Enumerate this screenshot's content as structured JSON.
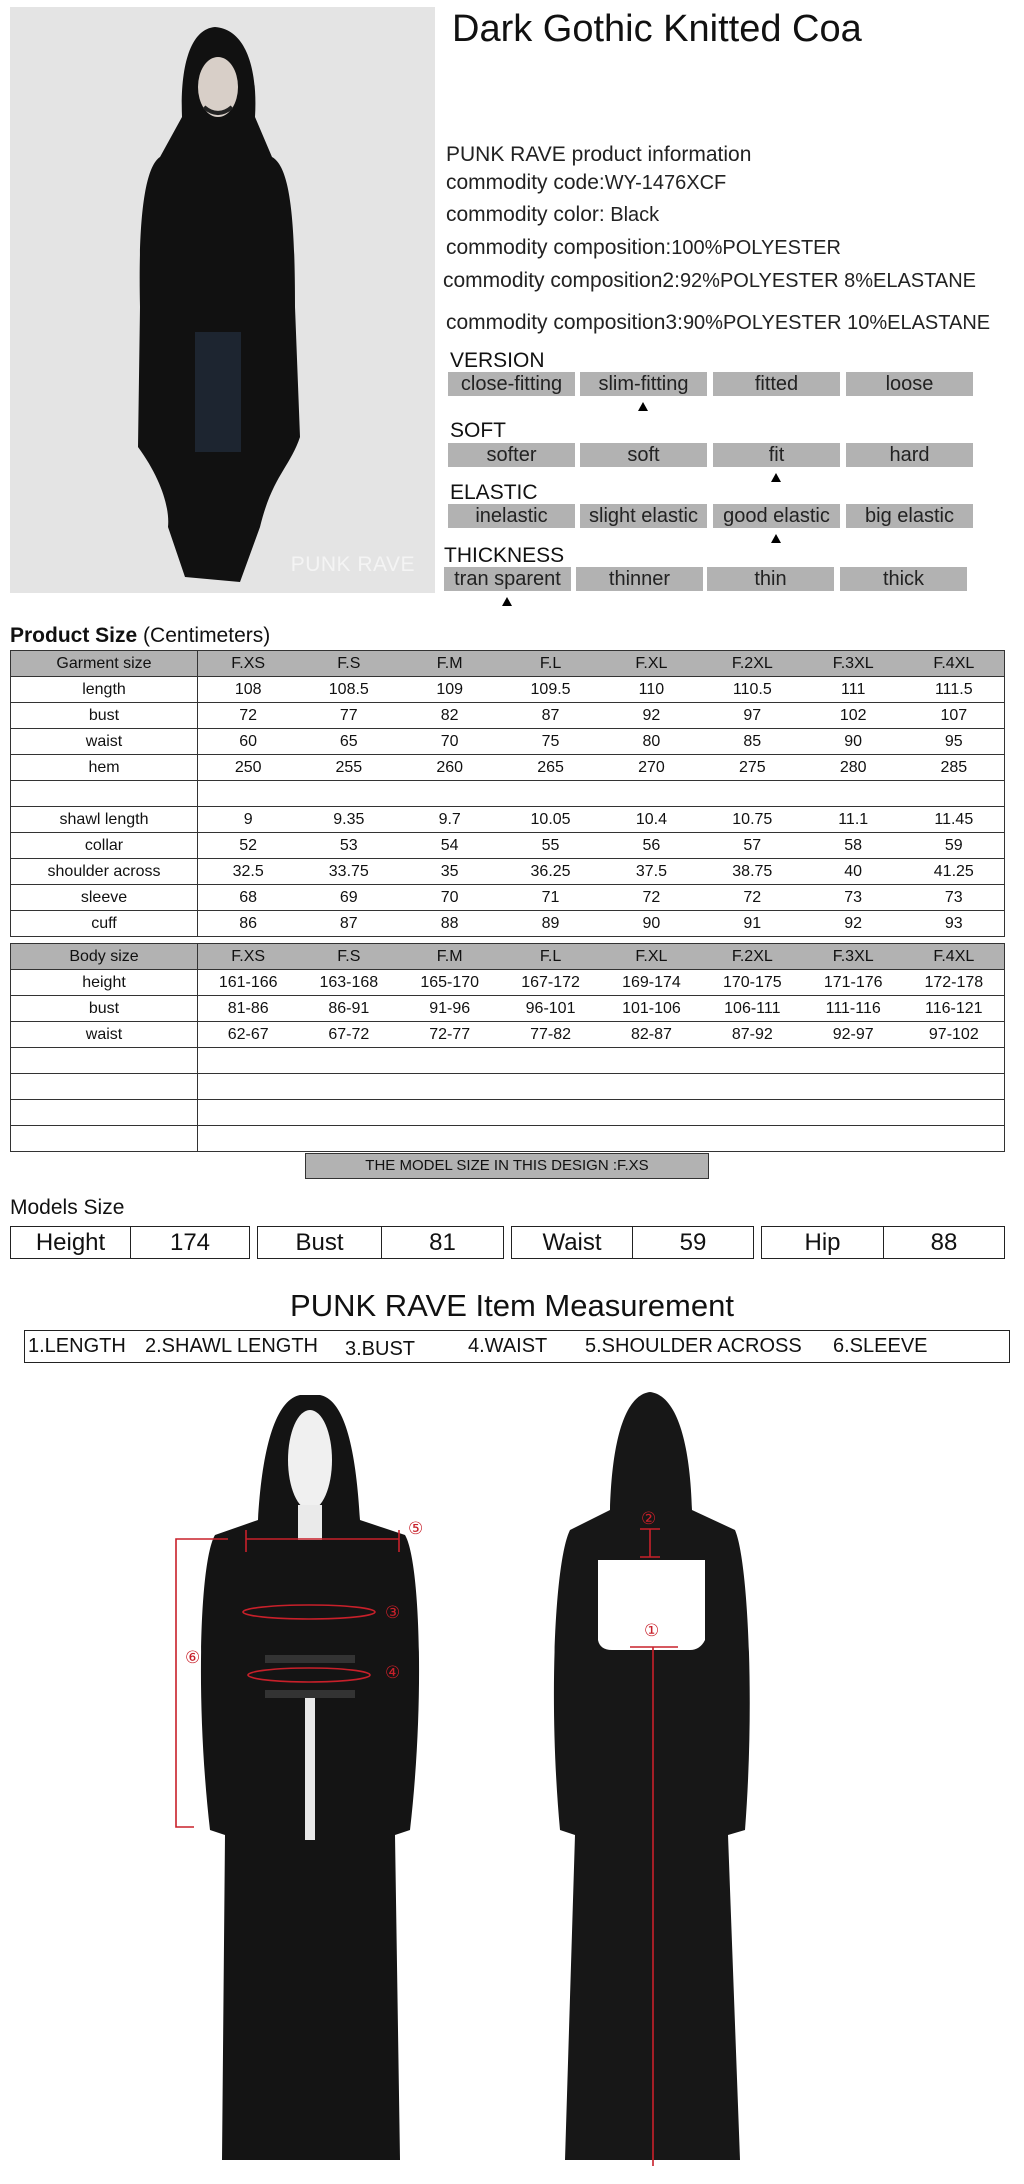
{
  "title": "Dark Gothic Knitted Coa",
  "photo": {
    "watermark": "PUNK RAVE"
  },
  "info": {
    "heading": "PUNK RAVE product information",
    "lines": [
      {
        "label": "commodity code:",
        "value": "WY-1476XCF"
      },
      {
        "label": "commodity color:",
        "value": " Black"
      },
      {
        "label": "commodity composition:",
        "value": "100%POLYESTER"
      },
      {
        "label": "commodity composition2:",
        "value": "92%POLYESTER 8%ELASTANE"
      },
      {
        "label": "commodity composition3:",
        "value": "90%POLYESTER 10%ELASTANE"
      }
    ]
  },
  "attributes": [
    {
      "label": "VERSION",
      "options": [
        "close-fitting",
        "slim-fitting",
        "fitted",
        "loose"
      ],
      "selected": 1
    },
    {
      "label": "SOFT",
      "options": [
        "softer",
        "soft",
        "fit",
        "hard"
      ],
      "selected": 2
    },
    {
      "label": "ELASTIC",
      "options": [
        "inelastic",
        "slight elastic",
        "good elastic",
        "big elastic"
      ],
      "selected": 2
    },
    {
      "label": "THICKNESS",
      "options": [
        "tran sparent",
        "thinner",
        "thin",
        "thick"
      ],
      "selected": 0
    }
  ],
  "product_size": {
    "title": "Product Size",
    "unit": "(Centimeters)",
    "header": "Garment size",
    "columns": [
      "F.XS",
      "F.S",
      "F.M",
      "F.L",
      "F.XL",
      "F.2XL",
      "F.3XL",
      "F.4XL"
    ],
    "rows": [
      {
        "label": "length",
        "values": [
          "108",
          "108.5",
          "109",
          "109.5",
          "110",
          "110.5",
          "111",
          "111.5"
        ]
      },
      {
        "label": "bust",
        "values": [
          "72",
          "77",
          "82",
          "87",
          "92",
          "97",
          "102",
          "107"
        ]
      },
      {
        "label": "waist",
        "values": [
          "60",
          "65",
          "70",
          "75",
          "80",
          "85",
          "90",
          "95"
        ]
      },
      {
        "label": "hem",
        "values": [
          "250",
          "255",
          "260",
          "265",
          "270",
          "275",
          "280",
          "285"
        ]
      },
      {
        "label": "",
        "values": []
      },
      {
        "label": "shawl length",
        "values": [
          "9",
          "9.35",
          "9.7",
          "10.05",
          "10.4",
          "10.75",
          "11.1",
          "11.45"
        ]
      },
      {
        "label": "collar",
        "values": [
          "52",
          "53",
          "54",
          "55",
          "56",
          "57",
          "58",
          "59"
        ]
      },
      {
        "label": "shoulder across",
        "values": [
          "32.5",
          "33.75",
          "35",
          "36.25",
          "37.5",
          "38.75",
          "40",
          "41.25"
        ]
      },
      {
        "label": "sleeve",
        "values": [
          "68",
          "69",
          "70",
          "71",
          "72",
          "72",
          "73",
          "73"
        ]
      },
      {
        "label": "cuff",
        "values": [
          "86",
          "87",
          "88",
          "89",
          "90",
          "91",
          "92",
          "93"
        ]
      }
    ]
  },
  "body_size": {
    "header": "Body size",
    "columns": [
      "F.XS",
      "F.S",
      "F.M",
      "F.L",
      "F.XL",
      "F.2XL",
      "F.3XL",
      "F.4XL"
    ],
    "rows": [
      {
        "label": "height",
        "values": [
          "161-166",
          "163-168",
          "165-170",
          "167-172",
          "169-174",
          "170-175",
          "171-176",
          "172-178"
        ]
      },
      {
        "label": "bust",
        "values": [
          "81-86",
          "86-91",
          "91-96",
          "96-101",
          "101-106",
          "106-111",
          "111-116",
          "116-121"
        ]
      },
      {
        "label": "waist",
        "values": [
          "62-67",
          "67-72",
          "72-77",
          "77-82",
          "82-87",
          "87-92",
          "92-97",
          "97-102"
        ]
      },
      {
        "label": "",
        "values": []
      },
      {
        "label": "",
        "values": []
      },
      {
        "label": "",
        "values": []
      },
      {
        "label": "",
        "values": []
      }
    ]
  },
  "model_note": "THE MODEL SIZE IN THIS DESIGN :F.XS",
  "models_size": {
    "title": "Models Size",
    "items": [
      {
        "label": "Height",
        "value": "174"
      },
      {
        "label": "Bust",
        "value": "81"
      },
      {
        "label": "Waist",
        "value": "59"
      },
      {
        "label": "Hip",
        "value": "88"
      }
    ]
  },
  "measurement": {
    "title": "PUNK RAVE Item  Measurement",
    "items": [
      "1.LENGTH",
      "2.SHAWL LENGTH",
      "3.BUST",
      "4.WAIST",
      "5.SHOULDER ACROSS",
      "6.SLEEVE"
    ],
    "markers": [
      "①",
      "②",
      "③",
      "④",
      "⑤",
      "⑥"
    ]
  },
  "colors": {
    "bar_gray": "#b2b2b2",
    "marker_red": "#c8202a"
  }
}
